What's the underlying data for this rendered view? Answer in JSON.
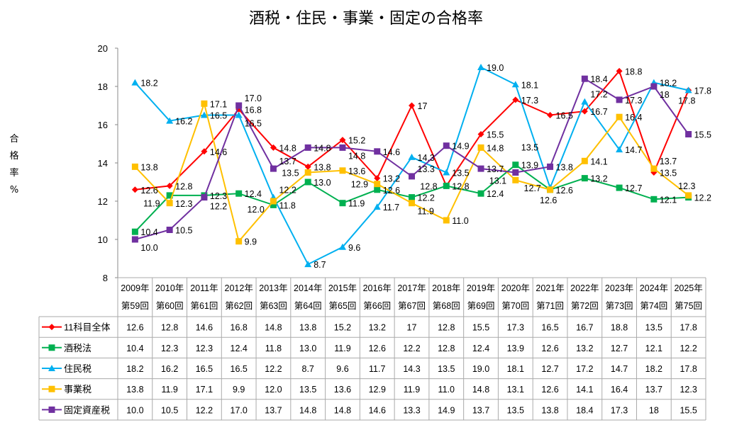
{
  "chart_data": {
    "type": "line",
    "title": "酒税・住民・事業・固定の合格率",
    "ylabel": [
      "合",
      "格",
      "率",
      "%"
    ],
    "ylim": [
      8,
      20
    ],
    "yticks": [
      8,
      10,
      12,
      14,
      16,
      18,
      20
    ],
    "grid": false,
    "legend": "table-bottom",
    "categories_year": [
      "2009年",
      "2010年",
      "2011年",
      "2012年",
      "2013年",
      "2014年",
      "2015年",
      "2016年",
      "2017年",
      "2018年",
      "2019年",
      "2020年",
      "2021年",
      "2022年",
      "2023年",
      "2024年",
      "2025年"
    ],
    "categories_round": [
      "第59回",
      "第60回",
      "第61回",
      "第62回",
      "第63回",
      "第64回",
      "第65回",
      "第66回",
      "第67回",
      "第68回",
      "第69回",
      "第70回",
      "第71回",
      "第72回",
      "第73回",
      "第74回",
      "第75回"
    ],
    "series": [
      {
        "name": "11科目全体",
        "color": "#ff0000",
        "marker": "diamond",
        "values": [
          "12.6",
          "12.8",
          "14.6",
          "16.8",
          "14.8",
          "13.8",
          "15.2",
          "13.2",
          "17",
          "12.8",
          "15.5",
          "17.3",
          "16.5",
          "16.7",
          "18.8",
          "13.5",
          "17.8"
        ]
      },
      {
        "name": "酒税法",
        "color": "#00b050",
        "marker": "square",
        "values": [
          "10.4",
          "12.3",
          "12.3",
          "12.4",
          "11.8",
          "13.0",
          "11.9",
          "12.6",
          "12.2",
          "12.8",
          "12.4",
          "13.9",
          "12.6",
          "13.2",
          "12.7",
          "12.1",
          "12.2"
        ]
      },
      {
        "name": "住民税",
        "color": "#00b0f0",
        "marker": "triangle",
        "values": [
          "18.2",
          "16.2",
          "16.5",
          "16.5",
          "12.2",
          "8.7",
          "9.6",
          "11.7",
          "14.3",
          "13.5",
          "19.0",
          "18.1",
          "12.7",
          "17.2",
          "14.7",
          "18.2",
          "17.8"
        ]
      },
      {
        "name": "事業税",
        "color": "#ffc000",
        "marker": "square",
        "values": [
          "13.8",
          "11.9",
          "17.1",
          "9.9",
          "12.0",
          "13.5",
          "13.6",
          "12.9",
          "11.9",
          "11.0",
          "14.8",
          "13.1",
          "12.6",
          "14.1",
          "16.4",
          "13.7",
          "12.3"
        ]
      },
      {
        "name": "固定資産税",
        "color": "#7030a0",
        "marker": "square",
        "values": [
          "10.0",
          "10.5",
          "12.2",
          "17.0",
          "13.7",
          "14.8",
          "14.8",
          "14.6",
          "13.3",
          "14.9",
          "13.7",
          "13.5",
          "13.8",
          "18.4",
          "17.3",
          "18",
          "15.5"
        ]
      }
    ]
  }
}
